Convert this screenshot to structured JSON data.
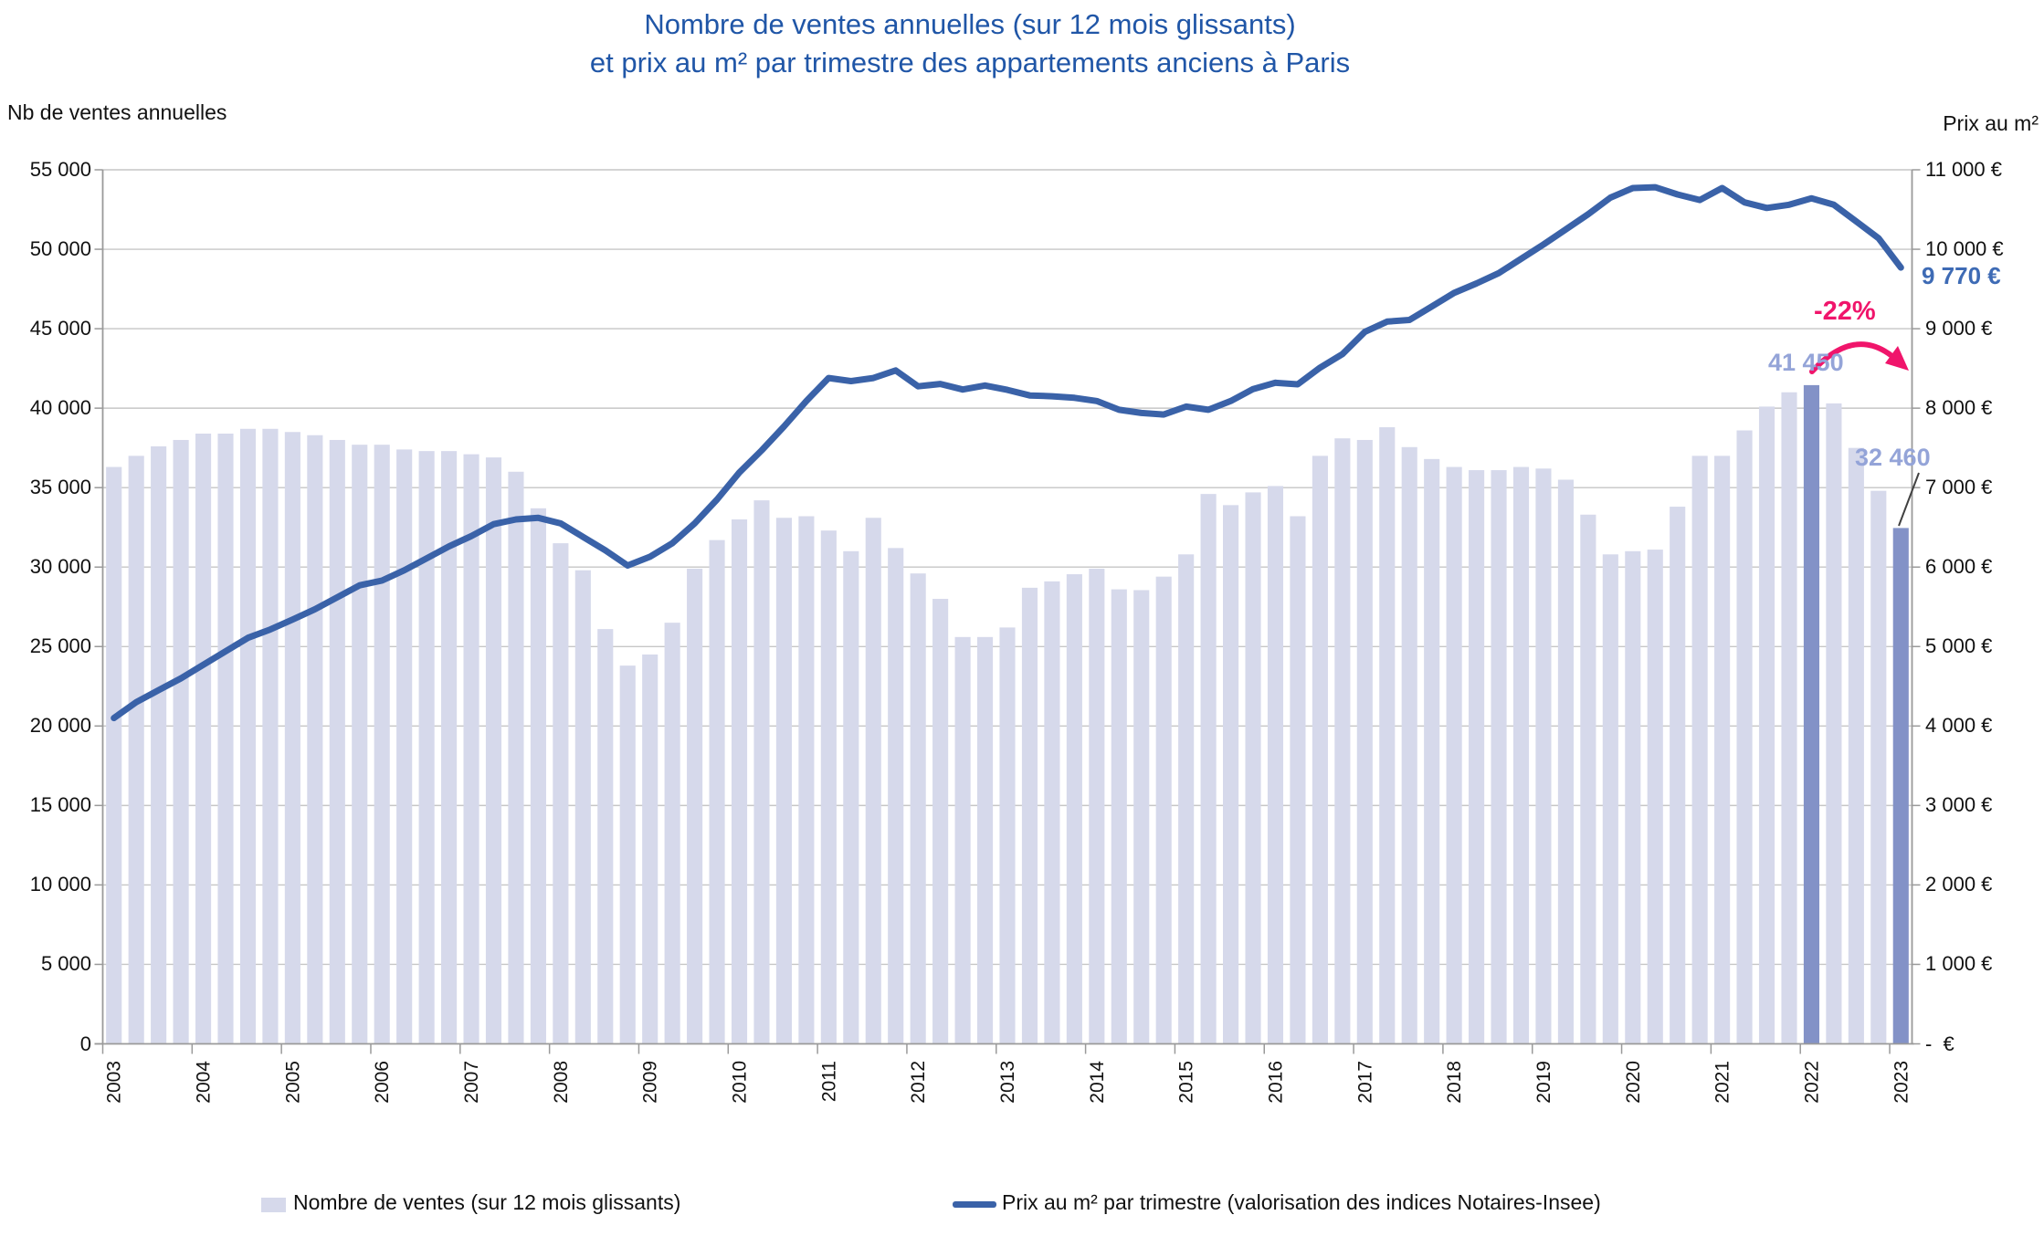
{
  "title": {
    "line1": "Nombre de ventes annuelles  (sur 12 mois glissants)",
    "line2": "et prix au m² par trimestre des appartements anciens à Paris"
  },
  "axes": {
    "left_title": "Nb de ventes annuelles",
    "right_title": "Prix au m²",
    "left_ticks": [
      "55 000",
      "50 000",
      "45 000",
      "40 000",
      "35 000",
      "30 000",
      "25 000",
      "20 000",
      "15 000",
      "10 000",
      "5 000",
      "0"
    ],
    "right_ticks": [
      "11 000 €",
      "10 000 €",
      "9 000 €",
      "8 000 €",
      "7 000 €",
      "6 000 €",
      "5 000 €",
      "4 000 €",
      "3 000 €",
      "2 000 €",
      "1 000 €",
      "-  €"
    ]
  },
  "legend": {
    "sales_label": "Nombre de ventes (sur 12 mois glissants)",
    "price_label": "Prix au m² par trimestre (valorisation des indices Notaires-Insee)"
  },
  "annotations": {
    "drop_pct": "-22%",
    "peak_sales": "41 450",
    "last_sales": "32 460",
    "last_price": "9 770 €"
  },
  "colors": {
    "bar_light": "#D6D9EB",
    "bar_dark": "#8392C7",
    "line_blue": "#3A62A8",
    "title_blue": "#2056A7",
    "pink": "#F0156B",
    "periwinkle_label": "#94A4D8",
    "price_label_blue": "#3E6BB5",
    "grid": "#C6C6C6",
    "axis": "#9A9A9A"
  },
  "chart_data": {
    "type": "bar",
    "subtype": "bar+line combo, quarterly",
    "title": "Nombre de ventes annuelles (sur 12 mois glissants) et prix au m² par trimestre des appartements anciens à Paris",
    "xlabel": "",
    "ylabel_left": "Nb de ventes annuelles",
    "ylabel_right": "Prix au m²",
    "left_axis_range": [
      0,
      55000
    ],
    "right_axis_range": [
      0,
      11000
    ],
    "grid": "horizontal",
    "legend_position": "bottom",
    "years": [
      2003,
      2004,
      2005,
      2006,
      2007,
      2008,
      2009,
      2010,
      2011,
      2012,
      2013,
      2014,
      2015,
      2016,
      2017,
      2018,
      2019,
      2020,
      2021,
      2022,
      2023
    ],
    "series": [
      {
        "name": "Nombre de ventes (sur 12 mois glissants)",
        "type": "bar",
        "axis": "left",
        "values_by_year": [
          [
            36300,
            37000,
            37600,
            38000
          ],
          [
            38400,
            38400,
            38700,
            38700
          ],
          [
            38500,
            38300,
            38000,
            37700
          ],
          [
            37700,
            37400,
            37300,
            37300
          ],
          [
            37100,
            36900,
            36000,
            33700
          ],
          [
            31500,
            29800,
            26100,
            23800
          ],
          [
            24500,
            26500,
            29900,
            31700
          ],
          [
            33000,
            34200,
            33100,
            33200
          ],
          [
            32300,
            31000,
            33100,
            31200
          ],
          [
            29600,
            28000,
            25600,
            25600
          ],
          [
            26200,
            28700,
            29100,
            29550
          ],
          [
            29900,
            28600,
            28550,
            29400
          ],
          [
            30800,
            34600,
            33900,
            34700
          ],
          [
            35100,
            33200,
            37000,
            38100
          ],
          [
            38000,
            38800,
            37550,
            36800
          ],
          [
            36300,
            36100,
            36100,
            36300
          ],
          [
            36200,
            35500,
            33300,
            30800
          ],
          [
            31000,
            31100,
            33800,
            37000
          ],
          [
            37000,
            38600,
            40100,
            41000
          ],
          [
            41450,
            40300,
            37500,
            34800
          ],
          [
            32460
          ]
        ]
      },
      {
        "name": "Prix au m² par trimestre (valorisation des indices Notaires-Insee)",
        "type": "line",
        "axis": "right",
        "values_by_year": [
          [
            4100,
            4300,
            4450,
            4600
          ],
          [
            4770,
            4940,
            5110,
            5215
          ],
          [
            5340,
            5470,
            5620,
            5770
          ],
          [
            5830,
            5960,
            6110,
            6260
          ],
          [
            6390,
            6540,
            6600,
            6620
          ],
          [
            6550,
            6380,
            6210,
            6020
          ],
          [
            6130,
            6300,
            6550,
            6850
          ],
          [
            7190,
            7470,
            7770,
            8090
          ],
          [
            8380,
            8340,
            8380,
            8475
          ],
          [
            8275,
            8305,
            8235,
            8285
          ],
          [
            8230,
            8160,
            8150,
            8130
          ],
          [
            8090,
            7980,
            7940,
            7920
          ],
          [
            8020,
            7980,
            8090,
            8240
          ],
          [
            8320,
            8300,
            8510,
            8680
          ],
          [
            8960,
            9090,
            9110,
            9280
          ],
          [
            9450,
            9570,
            9700,
            9880
          ],
          [
            10060,
            10250,
            10440,
            10650
          ],
          [
            10770,
            10780,
            10690,
            10620
          ],
          [
            10770,
            10590,
            10520,
            10560
          ],
          [
            10640,
            10560,
            10350,
            10140
          ],
          [
            9770
          ]
        ]
      }
    ],
    "highlighted_bars": [
      {
        "year": 2022,
        "quarter": 1,
        "value": 41450
      },
      {
        "year": 2023,
        "quarter": 1,
        "value": 32460
      }
    ],
    "annotations": {
      "peak_sales": 41450,
      "last_sales": 32460,
      "last_price_eur_m2": 9770,
      "drop_from_peak": "-22%"
    }
  }
}
